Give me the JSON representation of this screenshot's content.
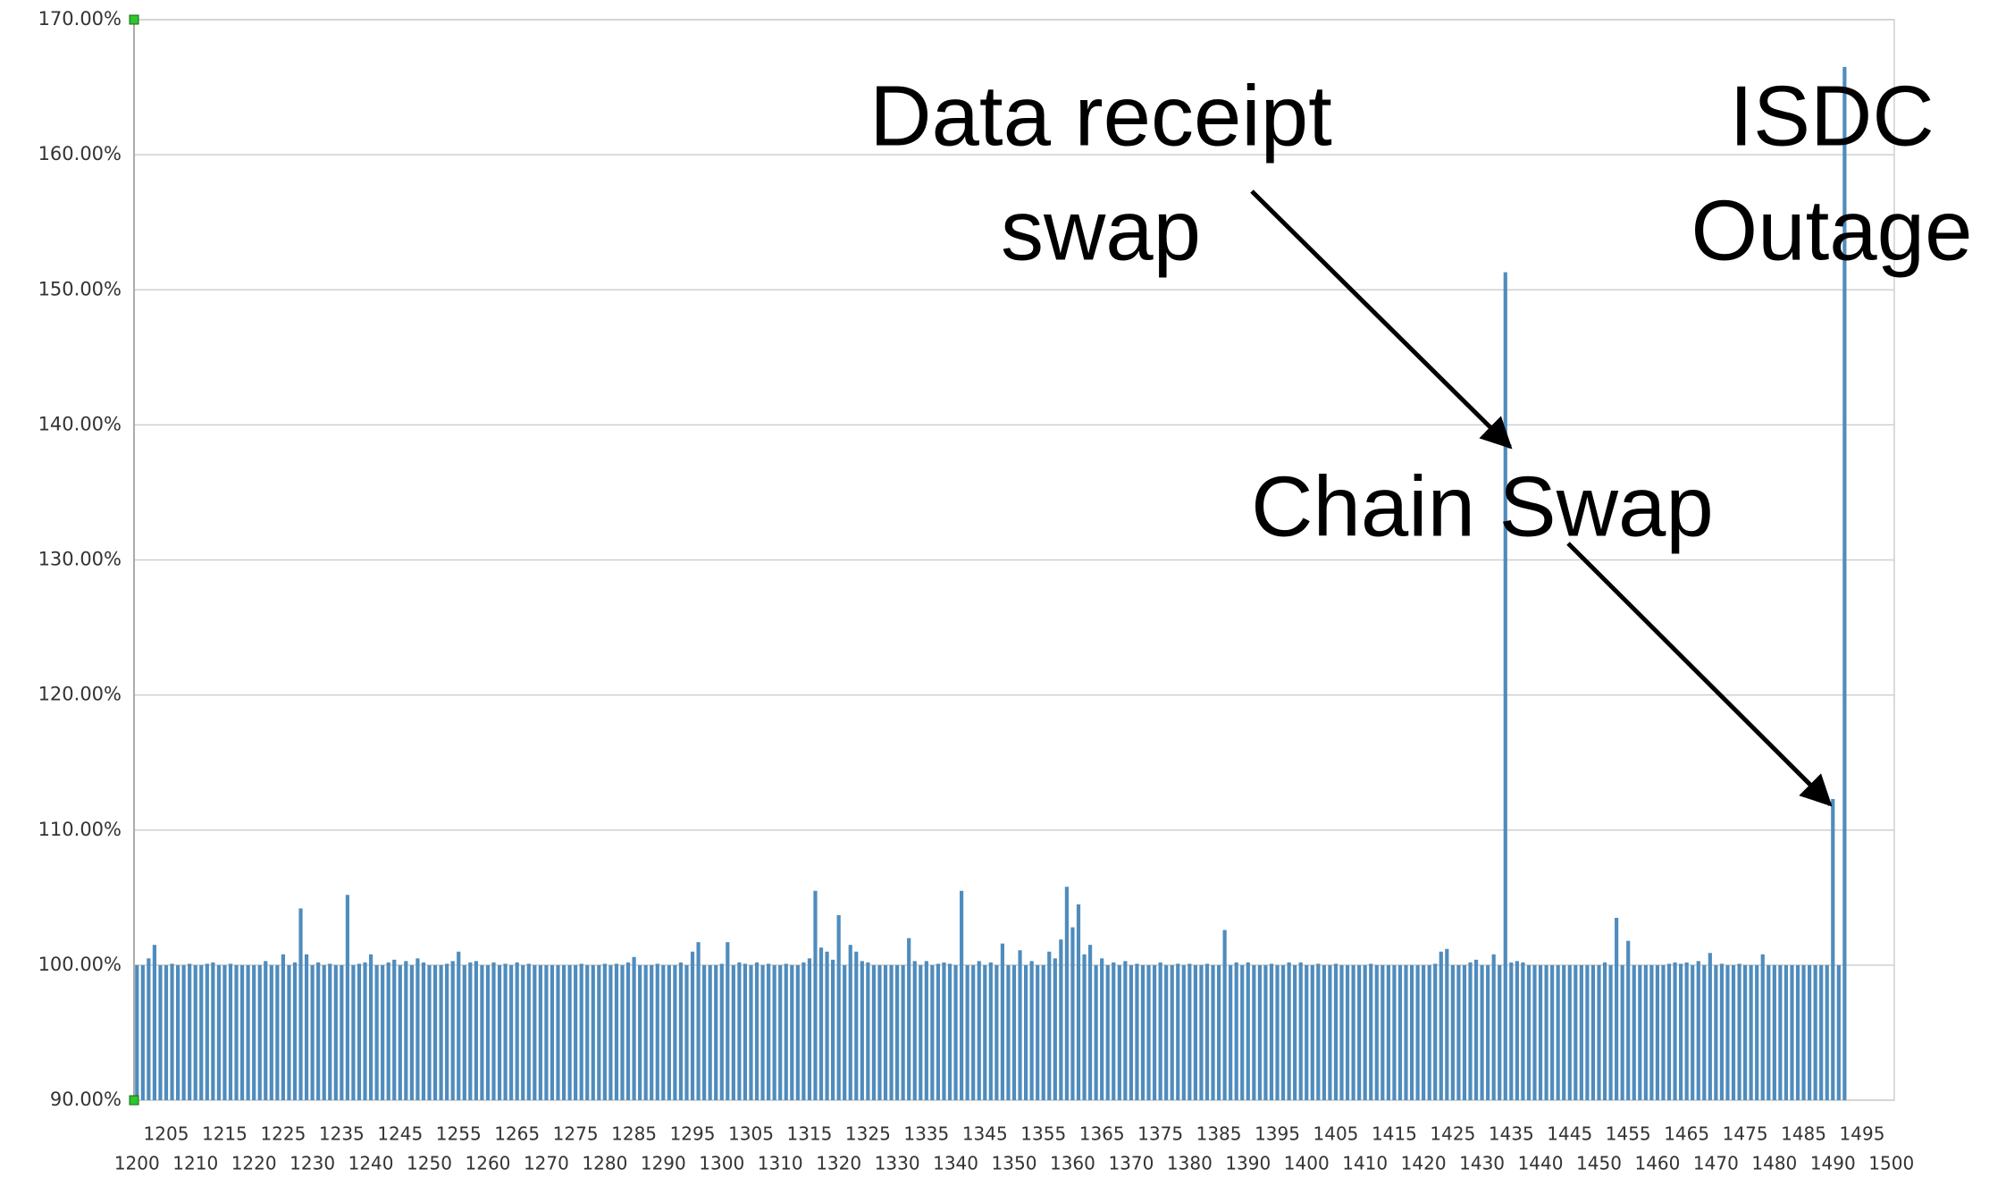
{
  "chart_data": {
    "type": "bar",
    "color": "#4f8cbd",
    "grid": true,
    "categories": [
      "1200",
      null,
      null,
      null,
      null,
      "1205",
      null,
      null,
      null,
      null,
      "1210",
      null,
      null,
      null,
      null,
      "1215",
      null,
      null,
      null,
      null,
      "1220",
      null,
      null,
      null,
      null,
      "1225",
      null,
      null,
      null,
      null,
      "1230",
      null,
      null,
      null,
      null,
      "1235",
      null,
      null,
      null,
      null,
      "1240",
      null,
      null,
      null,
      null,
      "1245",
      null,
      null,
      null,
      null,
      "1250",
      null,
      null,
      null,
      null,
      "1255",
      null,
      null,
      null,
      null,
      "1260",
      null,
      null,
      null,
      null,
      "1265",
      null,
      null,
      null,
      null,
      "1270",
      null,
      null,
      null,
      null,
      "1275",
      null,
      null,
      null,
      null,
      "1280",
      null,
      null,
      null,
      null,
      "1285",
      null,
      null,
      null,
      null,
      "1290",
      null,
      null,
      null,
      null,
      "1295",
      null,
      null,
      null,
      null,
      "1300",
      null,
      null,
      null,
      null,
      "1305",
      null,
      null,
      null,
      null,
      "1310",
      null,
      null,
      null,
      null,
      "1315",
      null,
      null,
      null,
      null,
      "1320",
      null,
      null,
      null,
      null,
      "1325",
      null,
      null,
      null,
      null,
      "1330",
      null,
      null,
      null,
      null,
      "1335",
      null,
      null,
      null,
      null,
      "1340",
      null,
      null,
      null,
      null,
      "1345",
      null,
      null,
      null,
      null,
      "1350",
      null,
      null,
      null,
      null,
      "1355",
      null,
      null,
      null,
      null,
      "1360",
      null,
      null,
      null,
      null,
      "1365",
      null,
      null,
      null,
      null,
      "1370",
      null,
      null,
      null,
      null,
      "1375",
      null,
      null,
      null,
      null,
      "1380",
      null,
      null,
      null,
      null,
      "1385",
      null,
      null,
      null,
      null,
      "1390",
      null,
      null,
      null,
      null,
      "1395",
      null,
      null,
      null,
      null,
      "1400",
      null,
      null,
      null,
      null,
      "1405",
      null,
      null,
      null,
      null,
      "1410",
      null,
      null,
      null,
      null,
      "1415",
      null,
      null,
      null,
      null,
      "1420",
      null,
      null,
      null,
      null,
      "1425",
      null,
      null,
      null,
      null,
      "1430",
      null,
      null,
      null,
      null,
      "1435",
      null,
      null,
      null,
      null,
      "1440",
      null,
      null,
      null,
      null,
      "1445",
      null,
      null,
      null,
      null,
      "1450",
      null,
      null,
      null,
      null,
      "1455",
      null,
      null,
      null,
      null,
      "1460",
      null,
      null,
      null,
      null,
      "1465",
      null,
      null,
      null,
      null,
      "1470",
      null,
      null,
      null,
      null,
      "1475",
      null,
      null,
      null,
      null,
      "1480",
      null,
      null,
      null,
      null,
      "1485",
      null,
      null,
      null,
      null,
      "1490",
      null,
      null,
      null,
      null,
      "1495",
      null,
      null,
      null,
      null,
      "1500"
    ],
    "values": [
      100,
      100,
      100.5,
      101.5,
      100,
      100,
      100.1,
      100,
      100,
      100.1,
      100,
      100,
      100.1,
      100.2,
      100,
      100,
      100.1,
      100,
      100,
      100,
      100,
      100,
      100.3,
      100,
      100,
      100.8,
      100,
      100.2,
      104.2,
      100.8,
      100,
      100.2,
      100,
      100.1,
      100,
      100,
      105.2,
      100,
      100.1,
      100.2,
      100.8,
      100,
      100,
      100.2,
      100.4,
      100,
      100.3,
      100,
      100.5,
      100.2,
      100,
      100,
      100,
      100.1,
      100.3,
      101,
      100,
      100.2,
      100.3,
      100,
      100,
      100.2,
      100,
      100.1,
      100,
      100.2,
      100,
      100.1,
      100,
      100,
      100,
      100,
      100,
      100,
      100,
      100,
      100.1,
      100,
      100,
      100,
      100.1,
      100,
      100.1,
      100,
      100.2,
      100.6,
      100,
      100,
      100,
      100.1,
      100,
      100,
      100,
      100.2,
      100,
      101,
      101.7,
      100,
      100,
      100,
      100.1,
      101.7,
      100,
      100.2,
      100.1,
      100,
      100.2,
      100,
      100.1,
      100,
      100,
      100.1,
      100,
      100,
      100.2,
      100.5,
      105.5,
      101.3,
      101,
      100.4,
      103.7,
      100,
      101.5,
      101,
      100.3,
      100.2,
      100,
      100,
      100,
      100,
      100,
      100,
      102,
      100.3,
      100,
      100.3,
      100,
      100.1,
      100.2,
      100.1,
      100,
      105.5,
      100,
      100,
      100.3,
      100,
      100.2,
      100,
      101.6,
      100,
      100,
      101.1,
      100,
      100.3,
      100,
      100,
      101,
      100.5,
      101.9,
      105.8,
      102.8,
      104.5,
      100.8,
      101.5,
      100,
      100.5,
      100,
      100.2,
      100,
      100.3,
      100,
      100.1,
      100,
      100,
      100,
      100.2,
      100,
      100,
      100.1,
      100,
      100.1,
      100,
      100,
      100.1,
      100,
      100,
      102.6,
      100,
      100.2,
      100,
      100.2,
      100,
      100,
      100,
      100.1,
      100,
      100,
      100.2,
      100,
      100.2,
      100,
      100,
      100.1,
      100,
      100,
      100.1,
      100,
      100,
      100,
      100,
      100,
      100.1,
      100,
      100,
      100,
      100,
      100,
      100,
      100,
      100,
      100,
      100,
      100.1,
      101,
      101.2,
      100,
      100,
      100,
      100.2,
      100.4,
      100,
      100,
      100.8,
      100,
      151.3,
      100.2,
      100.3,
      100.2,
      100,
      100,
      100,
      100,
      100,
      100,
      100,
      100,
      100,
      100,
      100,
      100,
      100,
      100.2,
      100,
      103.5,
      100,
      101.8,
      100,
      100,
      100,
      100,
      100,
      100,
      100.1,
      100.2,
      100.1,
      100.2,
      100,
      100.3,
      100,
      100.9,
      100,
      100.1,
      100,
      100,
      100.1,
      100,
      100,
      100,
      100.8,
      100,
      100,
      100,
      100,
      100,
      100,
      100,
      100,
      100,
      100,
      100,
      112.3,
      100,
      166.5,
      null,
      null,
      null,
      null,
      null,
      null,
      null,
      null
    ],
    "ylim": [
      90,
      170
    ],
    "yticks": [
      {
        "value": 90,
        "label": "90.00%"
      },
      {
        "value": 100,
        "label": "100.00%"
      },
      {
        "value": 110,
        "label": "110.00%"
      },
      {
        "value": 120,
        "label": "120.00%"
      },
      {
        "value": 130,
        "label": "130.00%"
      },
      {
        "value": 140,
        "label": "140.00%"
      },
      {
        "value": 150,
        "label": "150.00%"
      },
      {
        "value": 160,
        "label": "160.00%"
      },
      {
        "value": 170,
        "label": "170.00%"
      }
    ],
    "annotations": [
      {
        "lines": [
          "Data receipt",
          "swap"
        ]
      },
      {
        "lines": [
          "Chain Swap"
        ]
      },
      {
        "lines": [
          "ISDC",
          "Outage"
        ]
      }
    ]
  }
}
